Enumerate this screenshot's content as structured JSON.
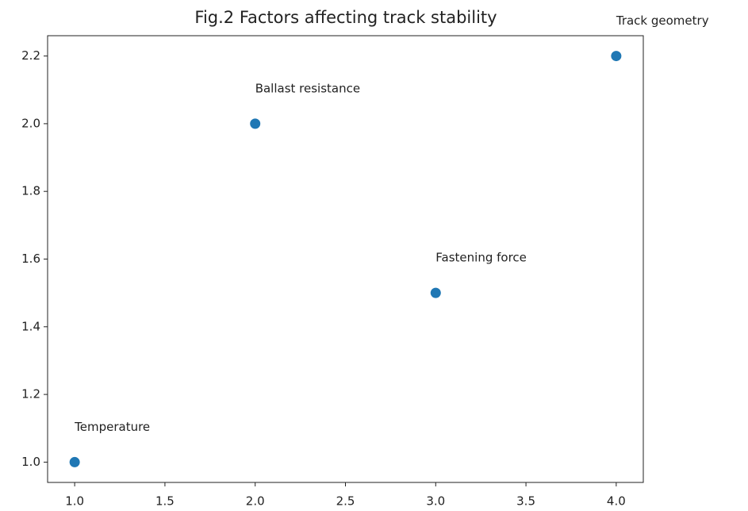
{
  "chart_data": {
    "type": "scatter",
    "title": "Fig.2 Factors affecting track stability",
    "x": [
      1,
      2,
      3,
      4
    ],
    "values": [
      1,
      2,
      1.5,
      2.2
    ],
    "labels": [
      "Temperature",
      "Ballast resistance",
      "Fastening force",
      "Track geometry"
    ],
    "color": "#1f77b4",
    "xlim": [
      0.85,
      4.15
    ],
    "xticks": [
      {
        "value": 1,
        "label": "1.0"
      },
      1.5,
      {
        "value": 2,
        "label": "2.0"
      },
      2.5,
      {
        "value": 3,
        "label": "3.0"
      },
      3.5,
      {
        "value": 4,
        "label": "4.0"
      }
    ],
    "ylim": [
      0.94,
      2.26
    ],
    "yticks": [
      {
        "value": 1,
        "label": "1.0"
      },
      1.2,
      1.4,
      1.6,
      1.8,
      {
        "value": 2,
        "label": "2.0"
      },
      2.2
    ],
    "grid": false
  }
}
